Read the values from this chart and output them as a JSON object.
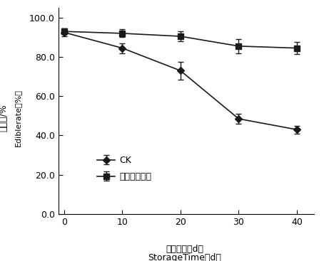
{
  "x": [
    0,
    10,
    20,
    30,
    40
  ],
  "ck_y": [
    92.5,
    84.5,
    73.0,
    48.5,
    43.0
  ],
  "ck_yerr": [
    2.0,
    2.5,
    4.5,
    2.5,
    2.0
  ],
  "fence_y": [
    93.0,
    92.0,
    90.5,
    85.5,
    84.5
  ],
  "fence_yerr": [
    1.5,
    2.0,
    2.5,
    3.5,
    3.0
  ],
  "xlim": [
    -1,
    43
  ],
  "ylim": [
    0.0,
    105.0
  ],
  "yticks": [
    0.0,
    20.0,
    40.0,
    60.0,
    80.0,
    100.0
  ],
  "xticks": [
    0,
    10,
    20,
    30,
    40
  ],
  "ylabel_cn": "可食率/%",
  "ylabel_en": "Ediblerate（%）",
  "xlabel_cn": "贮藏时间（d）",
  "xlabel_en": "StorageTime（d）",
  "legend_ck": "CK",
  "legend_fence": "栅栏技术处理",
  "line_color": "#1a1a1a",
  "bg_color": "#ffffff"
}
